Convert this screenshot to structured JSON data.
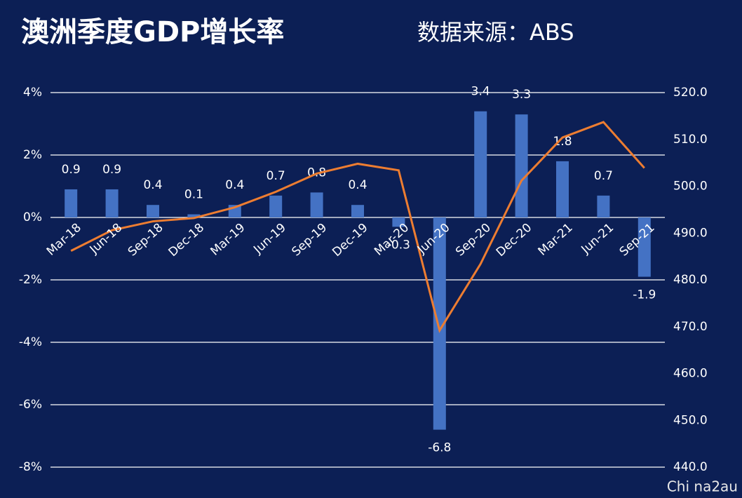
{
  "chart_data": {
    "type": "bar-line",
    "title": "澳洲季度GDP增长率",
    "subtitle": "数据来源：ABS",
    "watermark": "Chi na2au",
    "categories": [
      "Mar-18",
      "Jun-18",
      "Sep-18",
      "Dec-18",
      "Mar-19",
      "Jun-19",
      "Sep-19",
      "Dec-19",
      "Mar-20",
      "Jun-20",
      "Sep-20",
      "Dec-20",
      "Mar-21",
      "Jun-21",
      "Sep-21"
    ],
    "series": [
      {
        "type": "bar",
        "color": "#4472c4",
        "axis": "y",
        "values": [
          0.9,
          0.9,
          0.4,
          0.1,
          0.4,
          0.7,
          0.8,
          0.4,
          -0.3,
          -6.8,
          3.4,
          3.3,
          1.8,
          0.7,
          -1.9
        ]
      },
      {
        "type": "line",
        "color": "#ed7d31",
        "axis": "y2",
        "values": [
          486.2,
          490.6,
          492.5,
          493.2,
          495.5,
          498.8,
          502.7,
          504.8,
          503.4,
          469.2,
          483.4,
          501.2,
          510.4,
          513.7,
          503.9
        ]
      }
    ],
    "ylim": [
      -8,
      4
    ],
    "yticks": [
      {
        "value": 4,
        "label": "4%"
      },
      {
        "value": 2,
        "label": "2%"
      },
      {
        "value": 0,
        "label": "0%"
      },
      {
        "value": -2,
        "label": "-2%"
      },
      {
        "value": -4,
        "label": "-4%"
      },
      {
        "value": -6,
        "label": "-6%"
      },
      {
        "value": -8,
        "label": "-8%"
      }
    ],
    "y2lim": [
      440,
      520
    ],
    "y2ticks": [
      {
        "value": 520,
        "label": "520.0"
      },
      {
        "value": 510,
        "label": "510.0"
      },
      {
        "value": 500,
        "label": "500.0"
      },
      {
        "value": 490,
        "label": "490.0"
      },
      {
        "value": 480,
        "label": "480.0"
      },
      {
        "value": 470,
        "label": "470.0"
      },
      {
        "value": 460,
        "label": "460.0"
      },
      {
        "value": 450,
        "label": "450.0"
      },
      {
        "value": 440,
        "label": "440.0"
      }
    ],
    "grid": true
  }
}
